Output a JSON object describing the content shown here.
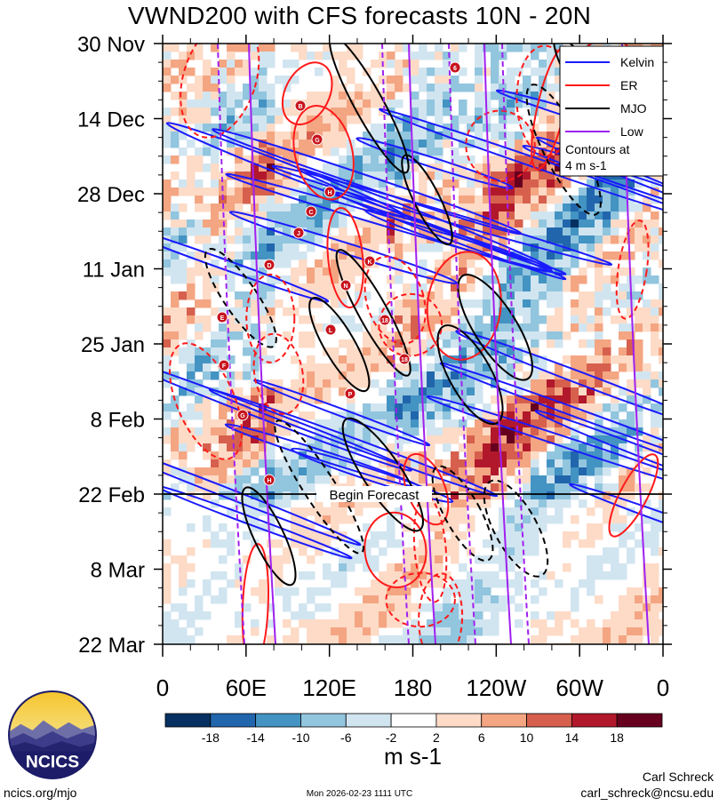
{
  "chart_data": {
    "type": "heatmap",
    "title": "VWND200 with CFS forecasts  10N - 20N",
    "y_ticks": [
      "30 Nov",
      "14 Dec",
      "28 Dec",
      "11 Jan",
      "25 Jan",
      "8 Feb",
      "22 Feb",
      "8 Mar",
      "22 Mar"
    ],
    "x_ticks": [
      "0",
      "60E",
      "120E",
      "180",
      "120W",
      "60W",
      "0"
    ],
    "forecast_label": "Begin Forecast",
    "forecast_start": "22 Feb",
    "legend": {
      "items": [
        {
          "name": "Kelvin",
          "color": "#1a1aff"
        },
        {
          "name": "ER",
          "color": "#ff1a1a"
        },
        {
          "name": "MJO",
          "color": "#000000"
        },
        {
          "name": "Low",
          "color": "#a020f0"
        }
      ],
      "note_line1": "Contours at",
      "note_line2": "4 m s-1"
    },
    "colorbar": {
      "units": "m s-1",
      "tick_labels": [
        "-18",
        "-14",
        "-10",
        "-6",
        "-2",
        "2",
        "6",
        "10",
        "14",
        "18"
      ],
      "colors": [
        "#053061",
        "#2166ac",
        "#4393c3",
        "#92c5de",
        "#d1e5f0",
        "#ffffff",
        "#fddbc7",
        "#f4a582",
        "#d6604d",
        "#b2182b",
        "#67001f"
      ]
    },
    "storm_labels": [
      "B",
      "G",
      "H",
      "C",
      "J",
      "D",
      "K",
      "N",
      "E",
      "L",
      "F",
      "P",
      "G",
      "H",
      "6",
      "18",
      "18"
    ]
  },
  "footer": {
    "site": "ncics.org/mjo",
    "timestamp": "Mon 2026-02-23 1111 UTC",
    "author": "Carl Schreck",
    "email": "carl_schreck@ncsu.edu"
  },
  "logo": {
    "text": "NCICS"
  }
}
